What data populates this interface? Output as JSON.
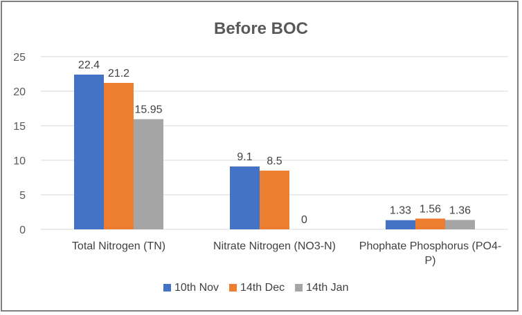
{
  "chart_data": {
    "type": "bar",
    "title": "Before BOC",
    "xlabel": "",
    "ylabel": "",
    "categories": [
      "Total Nitrogen (TN)",
      "Nitrate Nitrogen (NO3-N)",
      "Phophate Phosphorus (PO4-P)"
    ],
    "category_lines": [
      [
        "Total Nitrogen (TN)"
      ],
      [
        "Nitrate Nitrogen (NO3-N)"
      ],
      [
        "Phophate Phosphorus (PO4-",
        "P)"
      ]
    ],
    "series": [
      {
        "name": "10th Nov",
        "values": [
          22.4,
          9.1,
          1.33
        ],
        "labels": [
          "22.4",
          "9.1",
          "1.33"
        ],
        "color": "#4472c4"
      },
      {
        "name": "14th Dec",
        "values": [
          21.2,
          8.5,
          1.56
        ],
        "labels": [
          "21.2",
          "8.5",
          "1.56"
        ],
        "color": "#ed7d31"
      },
      {
        "name": "14th Jan",
        "values": [
          15.95,
          0,
          1.36
        ],
        "labels": [
          "15.95",
          "0",
          "1.36"
        ],
        "color": "#a5a5a5"
      }
    ],
    "ylim": [
      0,
      25
    ],
    "yticks": [
      "0",
      "5",
      "10",
      "15",
      "20",
      "25"
    ],
    "grid": true,
    "legend": "bottom"
  }
}
